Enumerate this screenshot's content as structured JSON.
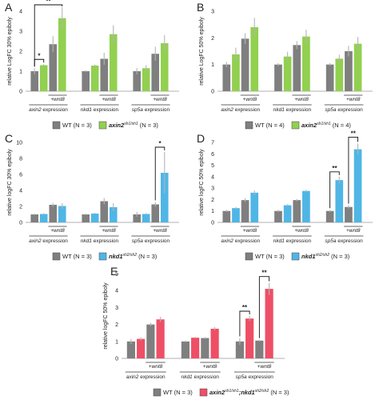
{
  "colors": {
    "wt": "#7f7f7f",
    "axin2": "#92d050",
    "nkd1": "#4fb6e6",
    "double": "#ee4f66",
    "err": "#b4b4b4"
  },
  "chart_data": [
    {
      "panel": "A",
      "type": "bar",
      "ylabel": "relative LogFC 30% epiboly",
      "ylim": [
        0,
        4
      ],
      "yticks": [
        0,
        1,
        2,
        3,
        4
      ],
      "plus_label": "+wnt8",
      "groups": [
        {
          "gene": "axin2",
          "suffix": "expression",
          "values": [
            1.0,
            1.3,
            2.35,
            3.65
          ],
          "err": [
            0.15,
            0.05,
            0.4,
            0.55
          ]
        },
        {
          "gene": "nkd1",
          "suffix": "expression",
          "values": [
            1.0,
            1.28,
            1.62,
            2.85
          ],
          "err": [
            0.05,
            0.05,
            0.3,
            0.45
          ]
        },
        {
          "gene": "sp5a",
          "suffix": "expression",
          "values": [
            1.0,
            1.15,
            1.87,
            2.4
          ],
          "err": [
            0.15,
            0.15,
            0.35,
            0.4
          ]
        }
      ],
      "significance": [
        {
          "group": 0,
          "from": 0,
          "to": 1,
          "label": "*"
        },
        {
          "group": 0,
          "from": 0,
          "to": 3,
          "label": "**"
        }
      ],
      "legend": [
        {
          "label": "WT (N = 3)",
          "colorKey": "wt"
        },
        {
          "label": "axin2",
          "sup": "sh1/sh1",
          "rest": " (N = 3)",
          "colorKey": "axin2"
        }
      ],
      "mutant_color": "axin2"
    },
    {
      "panel": "B",
      "type": "bar",
      "ylabel": "relative LogFC 50% epiboly",
      "ylim": [
        0,
        3
      ],
      "yticks": [
        0,
        1,
        2,
        3
      ],
      "plus_label": "+wnt8",
      "groups": [
        {
          "gene": "axin2",
          "suffix": "expression",
          "values": [
            1.0,
            1.38,
            1.97,
            2.4
          ],
          "err": [
            0.1,
            0.25,
            0.2,
            0.35
          ]
        },
        {
          "gene": "nkd1",
          "suffix": "expression",
          "values": [
            1.0,
            1.3,
            1.73,
            2.05
          ],
          "err": [
            0.05,
            0.18,
            0.15,
            0.25
          ]
        },
        {
          "gene": "sp5a",
          "suffix": "expression",
          "values": [
            1.0,
            1.22,
            1.5,
            1.78
          ],
          "err": [
            0.05,
            0.15,
            0.2,
            0.25
          ]
        }
      ],
      "significance": [],
      "legend": [
        {
          "label": "WT (N = 4)",
          "colorKey": "wt"
        },
        {
          "label": "axin2",
          "sup": "sh1/sh1",
          "rest": " (N = 4)",
          "colorKey": "axin2"
        }
      ],
      "mutant_color": "axin2"
    },
    {
      "panel": "C",
      "type": "bar",
      "ylabel": "relative logFC 30% epiboly",
      "ylim": [
        0,
        10
      ],
      "yticks": [
        0,
        2,
        4,
        6,
        8,
        10
      ],
      "plus_label": "+wnt8",
      "groups": [
        {
          "gene": "axin2",
          "suffix": "expression",
          "values": [
            1.0,
            1.05,
            2.2,
            2.05
          ],
          "err": [
            0.1,
            0.1,
            0.25,
            0.35
          ]
        },
        {
          "gene": "nkd1",
          "suffix": "expression",
          "values": [
            1.0,
            1.1,
            2.65,
            1.9
          ],
          "err": [
            0.1,
            0.1,
            0.4,
            0.5
          ]
        },
        {
          "gene": "sp5a",
          "suffix": "expression",
          "values": [
            1.0,
            1.05,
            2.25,
            6.2
          ],
          "err": [
            0.3,
            0.1,
            0.3,
            2.6
          ]
        }
      ],
      "significance": [
        {
          "group": 2,
          "from": 2,
          "to": 3,
          "label": "*"
        }
      ],
      "legend": [
        {
          "label": "WT (N = 3)",
          "colorKey": "wt"
        },
        {
          "label": "nkd1",
          "sup": "sh2/sh2",
          "rest": " (N = 3)",
          "colorKey": "nkd1"
        }
      ],
      "mutant_color": "nkd1"
    },
    {
      "panel": "D",
      "type": "bar",
      "ylabel": "relative logFC 50% epiboly",
      "ylim": [
        0,
        7
      ],
      "yticks": [
        0,
        1,
        2,
        3,
        4,
        5,
        6,
        7
      ],
      "plus_label": "+wnt8",
      "groups": [
        {
          "gene": "axin2",
          "suffix": "expression",
          "values": [
            1.0,
            1.25,
            1.95,
            2.6
          ],
          "err": [
            0.1,
            0.1,
            0.15,
            0.2
          ]
        },
        {
          "gene": "nkd1",
          "suffix": "expression",
          "values": [
            1.0,
            1.5,
            1.95,
            2.75
          ],
          "err": [
            0.1,
            0.1,
            0.1,
            0.1
          ]
        },
        {
          "gene": "sp5a",
          "suffix": "expression",
          "values": [
            1.0,
            3.7,
            1.35,
            6.4
          ],
          "err": [
            0.1,
            0.3,
            0.15,
            0.5
          ]
        }
      ],
      "significance": [
        {
          "group": 2,
          "from": 0,
          "to": 1,
          "label": "**"
        },
        {
          "group": 2,
          "from": 2,
          "to": 3,
          "label": "**"
        }
      ],
      "legend": [
        {
          "label": "WT (N = 3)",
          "colorKey": "wt"
        },
        {
          "label": "nkd1",
          "sup": "sh2/sh2",
          "rest": " (N = 3)",
          "colorKey": "nkd1"
        }
      ],
      "mutant_color": "nkd1"
    },
    {
      "panel": "E",
      "type": "bar",
      "ylabel": "relative logFC 50% epiboly",
      "ylim": [
        0,
        5
      ],
      "yticks": [
        0,
        1,
        2,
        3,
        4,
        5
      ],
      "plus_label": "+wnt8",
      "groups": [
        {
          "gene": "axin2",
          "suffix": "expression",
          "values": [
            1.0,
            1.15,
            2.0,
            2.3
          ],
          "err": [
            0.15,
            0.1,
            0.1,
            0.15
          ]
        },
        {
          "gene": "nkd1",
          "suffix": "expression",
          "values": [
            1.0,
            1.22,
            1.2,
            1.75
          ],
          "err": [
            0.05,
            0.05,
            0.05,
            0.1
          ]
        },
        {
          "gene": "sp5a",
          "suffix": "expression",
          "values": [
            1.0,
            2.35,
            1.05,
            4.1
          ],
          "err": [
            0.2,
            0.15,
            0.05,
            0.35
          ]
        }
      ],
      "significance": [
        {
          "group": 2,
          "from": 0,
          "to": 1,
          "label": "**"
        },
        {
          "group": 2,
          "from": 2,
          "to": 3,
          "label": "**"
        }
      ],
      "legend": [
        {
          "label": "WT (N = 3)",
          "colorKey": "wt"
        },
        {
          "label": "axin2",
          "sup": "sh1/sh1",
          "mid": ";nkd1",
          "sup2": "sh2/sh2",
          "rest": " (N = 3)",
          "colorKey": "double"
        }
      ],
      "mutant_color": "double"
    }
  ]
}
